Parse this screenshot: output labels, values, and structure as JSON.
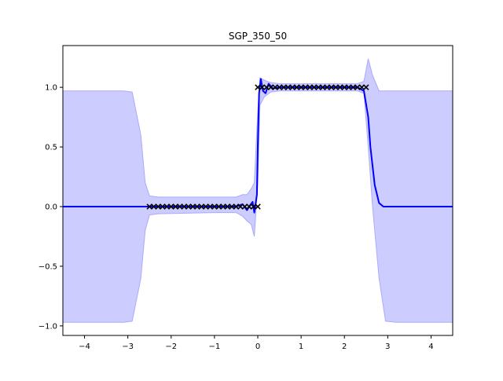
{
  "chart_data": {
    "type": "line",
    "title": "SGP_350_50",
    "xlabel": "",
    "ylabel": "",
    "xlim": [
      -4.5,
      4.5
    ],
    "ylim": [
      -1.08,
      1.35
    ],
    "xticks": [
      -4,
      -3,
      -2,
      -1,
      0,
      1,
      2,
      3,
      4
    ],
    "xtick_labels": [
      "−4",
      "−3",
      "−2",
      "−1",
      "0",
      "1",
      "2",
      "3",
      "4"
    ],
    "yticks": [
      -1.0,
      -0.5,
      0.0,
      0.5,
      1.0
    ],
    "ytick_labels": [
      "−1.0",
      "−0.5",
      "0.0",
      "0.5",
      "1.0"
    ],
    "grid": false,
    "legend": "none",
    "colors": {
      "mean": "#0000ff",
      "band_fill": "#ccccff",
      "band_edge": "#aaaaff",
      "observations": "#000000"
    },
    "series": [
      {
        "kind": "mean",
        "x": [
          -4.5,
          -2.5,
          -1.0,
          -0.5,
          -0.35,
          -0.25,
          -0.18,
          -0.12,
          -0.08,
          -0.02,
          0.0,
          0.03,
          0.07,
          0.12,
          0.18,
          0.25,
          0.35,
          0.5,
          1.5,
          2.3,
          2.45,
          2.55,
          2.6,
          2.7,
          2.8,
          2.9,
          4.5
        ],
        "y": [
          0.0,
          0.0,
          0.0,
          0.0,
          0.02,
          -0.03,
          0.01,
          0.04,
          -0.05,
          0.1,
          0.5,
          0.95,
          1.07,
          0.97,
          0.95,
          1.03,
          0.99,
          1.0,
          1.0,
          1.0,
          0.97,
          0.75,
          0.5,
          0.18,
          0.03,
          0.0,
          0.0
        ]
      },
      {
        "kind": "confidence_band",
        "x": [
          -4.5,
          -3.1,
          -2.9,
          -2.7,
          -2.6,
          -2.5,
          -2.3,
          -1.0,
          -0.5,
          -0.35,
          -0.25,
          -0.15,
          -0.08,
          0.0,
          0.05,
          0.15,
          0.3,
          0.5,
          1.5,
          2.3,
          2.45,
          2.55,
          2.65,
          2.8,
          2.95,
          3.2,
          4.5
        ],
        "upper": [
          0.97,
          0.97,
          0.96,
          0.6,
          0.2,
          0.09,
          0.08,
          0.08,
          0.08,
          0.1,
          0.1,
          0.15,
          0.2,
          0.8,
          1.08,
          1.06,
          1.04,
          1.03,
          1.03,
          1.03,
          1.05,
          1.24,
          1.1,
          0.97,
          0.97,
          0.97,
          0.97
        ],
        "lower": [
          -0.97,
          -0.97,
          -0.96,
          -0.6,
          -0.2,
          -0.07,
          -0.06,
          -0.05,
          -0.05,
          -0.08,
          -0.12,
          -0.15,
          -0.25,
          0.2,
          0.85,
          0.92,
          0.96,
          0.97,
          0.97,
          0.97,
          0.95,
          0.5,
          0.0,
          -0.6,
          -0.96,
          -0.97,
          -0.97
        ]
      },
      {
        "kind": "observations",
        "marker": "x",
        "x": [
          -2.5,
          -2.4,
          -2.3,
          -2.2,
          -2.1,
          -2.0,
          -1.9,
          -1.8,
          -1.7,
          -1.6,
          -1.5,
          -1.4,
          -1.3,
          -1.2,
          -1.1,
          -1.0,
          -0.9,
          -0.8,
          -0.7,
          -0.6,
          -0.5,
          -0.4,
          -0.3,
          -0.2,
          -0.1,
          0.0,
          0.0,
          0.1,
          0.2,
          0.3,
          0.4,
          0.5,
          0.6,
          0.7,
          0.8,
          0.9,
          1.0,
          1.1,
          1.2,
          1.3,
          1.4,
          1.5,
          1.6,
          1.7,
          1.8,
          1.9,
          2.0,
          2.1,
          2.2,
          2.3,
          2.4,
          2.5
        ],
        "y": [
          0,
          0,
          0,
          0,
          0,
          0,
          0,
          0,
          0,
          0,
          0,
          0,
          0,
          0,
          0,
          0,
          0,
          0,
          0,
          0,
          0,
          0,
          0,
          0,
          0,
          0,
          1,
          1,
          1,
          1,
          1,
          1,
          1,
          1,
          1,
          1,
          1,
          1,
          1,
          1,
          1,
          1,
          1,
          1,
          1,
          1,
          1,
          1,
          1,
          1,
          1,
          1
        ]
      }
    ]
  }
}
